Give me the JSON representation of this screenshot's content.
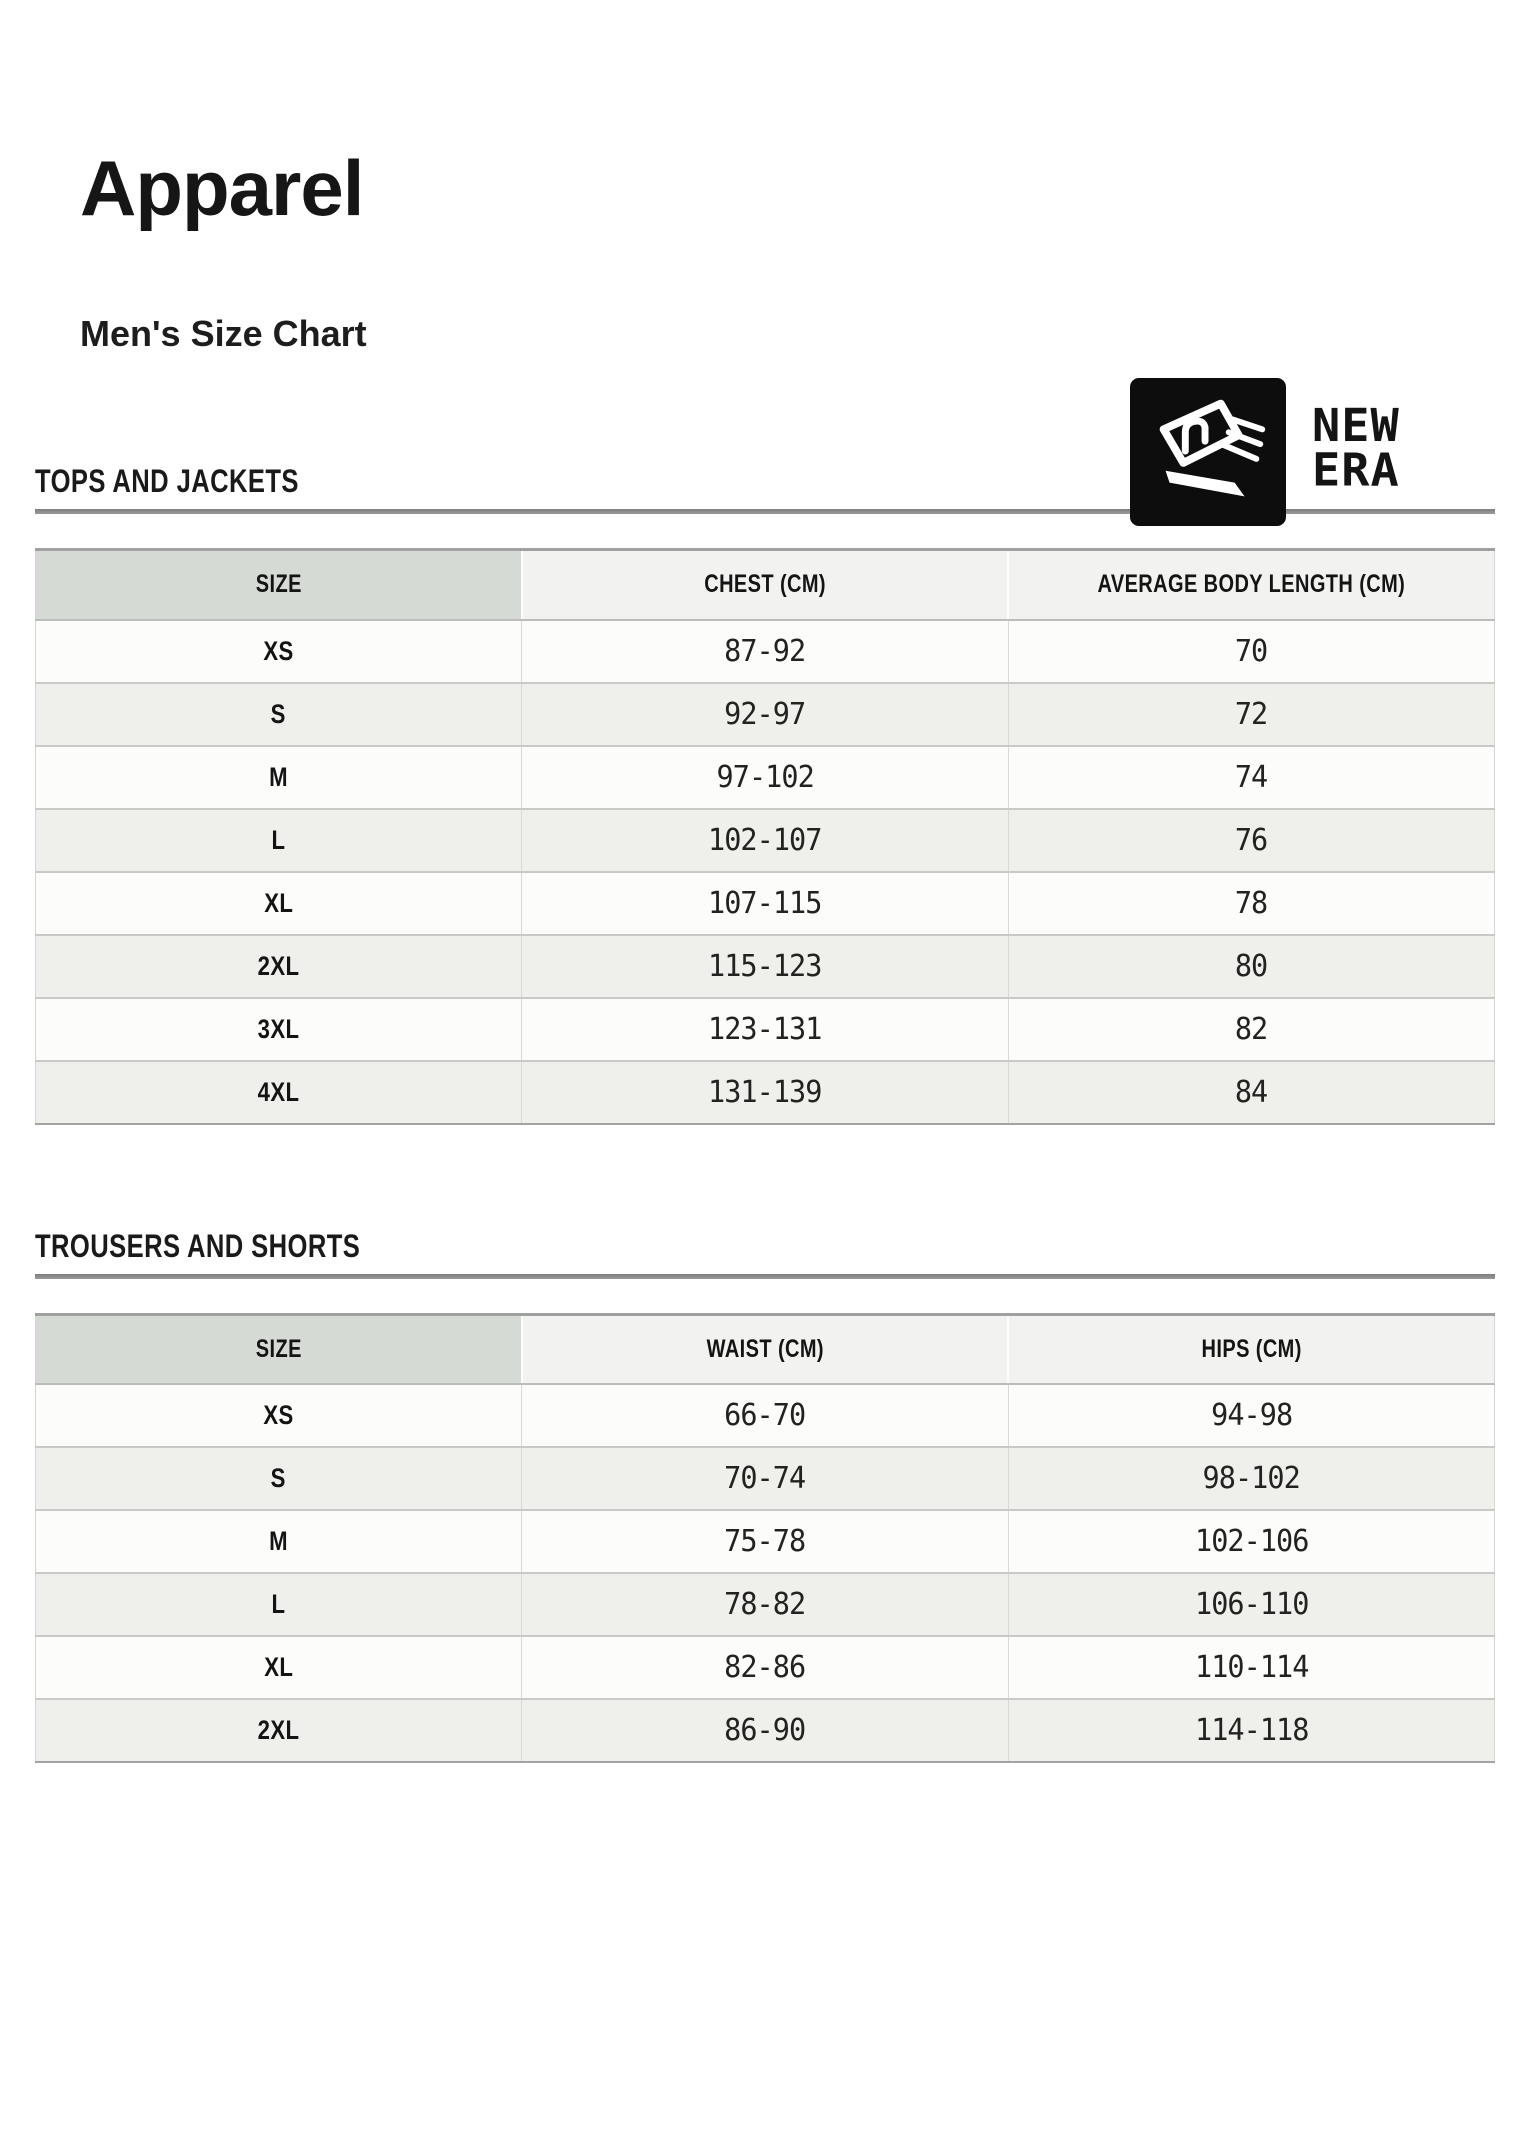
{
  "header": {
    "title": "Apparel",
    "subtitle": "Men's Size Chart",
    "brand": {
      "name": "NEW ERA",
      "wordmark_line1": "NEW",
      "wordmark_line2": "ERA",
      "logo_icon": "new-era-flag-icon",
      "logo_bg": "#0d0d0d",
      "logo_fg": "#ffffff"
    }
  },
  "sections": [
    {
      "heading": "TOPS AND JACKETS",
      "table": {
        "columns": [
          "SIZE",
          "CHEST (CM)",
          "AVERAGE BODY LENGTH (CM)"
        ],
        "rows": [
          [
            "XS",
            "87-92",
            "70"
          ],
          [
            "S",
            "92-97",
            "72"
          ],
          [
            "M",
            "97-102",
            "74"
          ],
          [
            "L",
            "102-107",
            "76"
          ],
          [
            "XL",
            "107-115",
            "78"
          ],
          [
            "2XL",
            "115-123",
            "80"
          ],
          [
            "3XL",
            "123-131",
            "82"
          ],
          [
            "4XL",
            "131-139",
            "84"
          ]
        ]
      }
    },
    {
      "heading": "TROUSERS AND SHORTS",
      "table": {
        "columns": [
          "SIZE",
          "WAIST (CM)",
          "HIPS (CM)"
        ],
        "rows": [
          [
            "XS",
            "66-70",
            "94-98"
          ],
          [
            "S",
            "70-74",
            "98-102"
          ],
          [
            "M",
            "75-78",
            "102-106"
          ],
          [
            "L",
            "78-82",
            "106-110"
          ],
          [
            "XL",
            "82-86",
            "110-114"
          ],
          [
            "2XL",
            "86-90",
            "114-118"
          ]
        ]
      }
    }
  ],
  "colors": {
    "size_header_bg": "#d6dad5",
    "header_bg": "#f2f2f0",
    "row_white": "#fcfcfb",
    "row_shaded": "#efefec",
    "section_rule": "#8d8d8d",
    "table_border_dark": "#a0a0a0",
    "table_border_light": "#c9c9c7",
    "text": "#1b1b1b"
  }
}
